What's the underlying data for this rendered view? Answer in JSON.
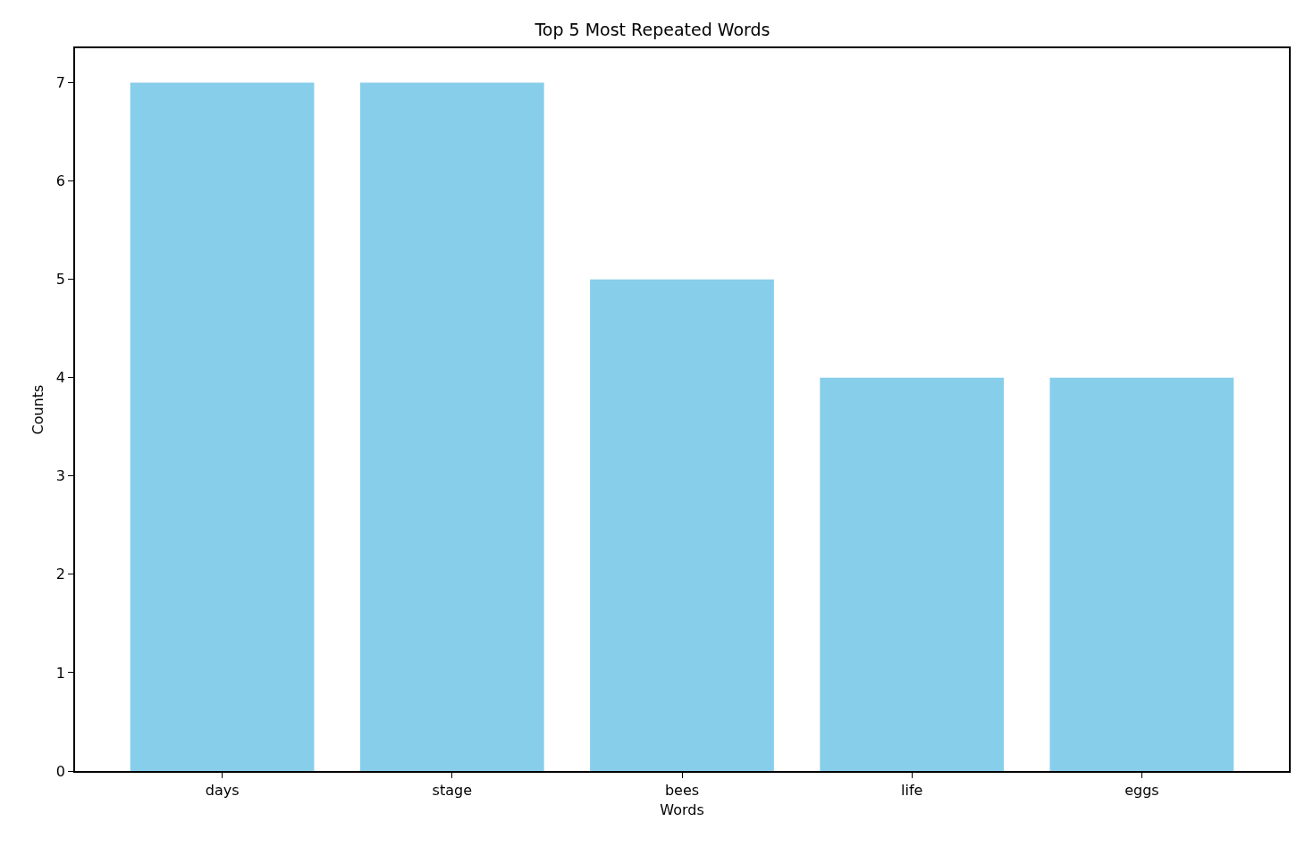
{
  "chart_data": {
    "type": "bar",
    "title": "Top 5 Most Repeated Words",
    "xlabel": "Words",
    "ylabel": "Counts",
    "categories": [
      "days",
      "stage",
      "bees",
      "life",
      "eggs"
    ],
    "values": [
      7,
      7,
      5,
      4,
      4
    ],
    "color": "#87ceeb",
    "ylim": [
      0,
      7.35
    ],
    "yticks": [
      0,
      1,
      2,
      3,
      4,
      5,
      6,
      7
    ],
    "legend": false
  }
}
